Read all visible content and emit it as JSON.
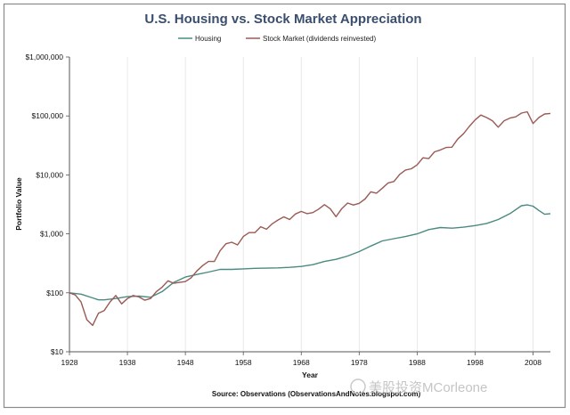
{
  "chart_data": {
    "type": "line",
    "title": "U.S. Housing vs. Stock Market Appreciation",
    "xlabel": "Year",
    "ylabel": "Portfolio Value",
    "y_scale": "log",
    "ylim": [
      10,
      1000000
    ],
    "xlim": [
      1928,
      2011
    ],
    "x_ticks": [
      1928,
      1938,
      1948,
      1958,
      1968,
      1978,
      1988,
      1998,
      2008
    ],
    "x_tick_labels": [
      "1928",
      "1938",
      "1948",
      "1958",
      "1968",
      "1978",
      "1988",
      "1998",
      "2008"
    ],
    "y_ticks": [
      10,
      100,
      1000,
      10000,
      100000,
      1000000
    ],
    "y_tick_labels": [
      "$10",
      "$100",
      "$1,000",
      "$10,000",
      "$100,000",
      "$1,000,000"
    ],
    "grid": "vertical",
    "legend_position": "top",
    "source": "Source: Observations (ObservationsAndNotes.blogspot.com)",
    "series": [
      {
        "name": "Housing",
        "color": "#4a8a82",
        "x": [
          1928,
          1930,
          1932,
          1933,
          1934,
          1936,
          1938,
          1940,
          1942,
          1944,
          1946,
          1948,
          1950,
          1952,
          1954,
          1956,
          1958,
          1960,
          1962,
          1964,
          1966,
          1968,
          1970,
          1972,
          1974,
          1976,
          1978,
          1980,
          1982,
          1984,
          1986,
          1988,
          1990,
          1992,
          1994,
          1996,
          1998,
          2000,
          2002,
          2004,
          2006,
          2007,
          2008,
          2009,
          2010,
          2011
        ],
        "y": [
          100,
          95,
          82,
          76,
          76,
          80,
          86,
          88,
          84,
          105,
          150,
          185,
          205,
          225,
          250,
          250,
          255,
          260,
          262,
          265,
          270,
          280,
          300,
          340,
          370,
          420,
          500,
          620,
          760,
          830,
          900,
          1000,
          1180,
          1280,
          1250,
          1300,
          1380,
          1500,
          1750,
          2200,
          3000,
          3100,
          2950,
          2500,
          2150,
          2200
        ]
      },
      {
        "name": "Stock Market (dividends reinvested)",
        "color": "#9a5a55",
        "x": [
          1928,
          1929,
          1930,
          1931,
          1932,
          1933,
          1934,
          1935,
          1936,
          1937,
          1938,
          1939,
          1940,
          1941,
          1942,
          1943,
          1944,
          1945,
          1946,
          1947,
          1948,
          1949,
          1950,
          1951,
          1952,
          1953,
          1954,
          1955,
          1956,
          1957,
          1958,
          1959,
          1960,
          1961,
          1962,
          1963,
          1964,
          1965,
          1966,
          1967,
          1968,
          1969,
          1970,
          1971,
          1972,
          1973,
          1974,
          1975,
          1976,
          1977,
          1978,
          1979,
          1980,
          1981,
          1982,
          1983,
          1984,
          1985,
          1986,
          1987,
          1988,
          1989,
          1990,
          1991,
          1992,
          1993,
          1994,
          1995,
          1996,
          1997,
          1998,
          1999,
          2000,
          2001,
          2002,
          2003,
          2004,
          2005,
          2006,
          2007,
          2008,
          2009,
          2010,
          2011
        ],
        "y": [
          100,
          92,
          70,
          35,
          28,
          45,
          50,
          70,
          90,
          65,
          80,
          90,
          85,
          75,
          80,
          105,
          125,
          160,
          145,
          150,
          155,
          180,
          235,
          290,
          340,
          340,
          520,
          680,
          720,
          650,
          900,
          1050,
          1050,
          1320,
          1200,
          1480,
          1720,
          1940,
          1750,
          2170,
          2400,
          2200,
          2300,
          2630,
          3130,
          2670,
          1960,
          2690,
          3330,
          3090,
          3300,
          3900,
          5170,
          4900,
          5960,
          7300,
          7740,
          10200,
          12100,
          12700,
          14800,
          19500,
          18900,
          24600,
          26500,
          29200,
          29500,
          40500,
          49800,
          66400,
          85400,
          103400,
          94000,
          82800,
          64500,
          83000,
          92000,
          96500,
          111700,
          117800,
          74300,
          93900,
          108000,
          110300
        ]
      }
    ]
  }
}
